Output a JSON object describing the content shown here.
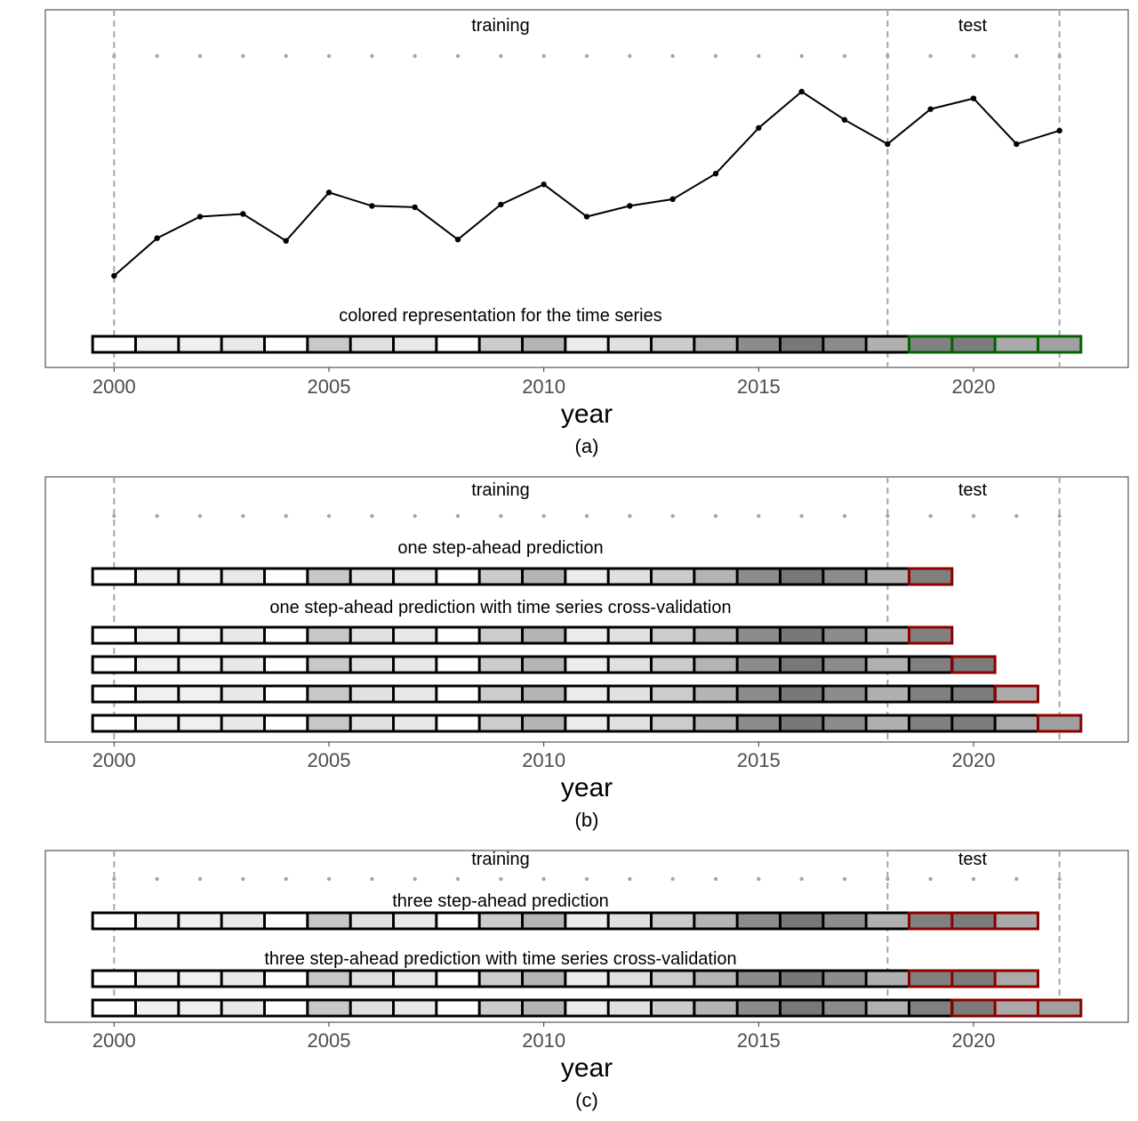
{
  "chart_data": [
    {
      "type": "line",
      "panel_label": "(a)",
      "xlabel": "year",
      "ylabel": "",
      "xlim": [
        1998.4,
        2023.6
      ],
      "x_ticks": [
        2000,
        2005,
        2010,
        2015,
        2020
      ],
      "region_labels": {
        "training": "training",
        "test": "test"
      },
      "split_lines": [
        2000,
        2018,
        2022
      ],
      "series": [
        {
          "x": [
            2000,
            2001,
            2002,
            2003,
            2004,
            2005,
            2006,
            2007,
            2008,
            2009,
            2010,
            2011,
            2012,
            2013,
            2014,
            2015,
            2016,
            2017,
            2018,
            2019,
            2020,
            2021,
            2022
          ],
          "values": [
            0.0,
            0.14,
            0.22,
            0.23,
            0.13,
            0.31,
            0.26,
            0.255,
            0.135,
            0.265,
            0.34,
            0.22,
            0.26,
            0.285,
            0.38,
            0.55,
            0.685,
            0.58,
            0.49,
            0.62,
            0.66,
            0.49,
            0.54
          ]
        }
      ],
      "rows": [
        {
          "caption": "colored representation for the time series",
          "train_years": [
            2000,
            2018
          ],
          "target_years": [
            2019,
            2022
          ],
          "target_color": "#006400"
        }
      ]
    },
    {
      "type": "table",
      "panel_label": "(b)",
      "xlabel": "year",
      "xlim": [
        1998.4,
        2023.6
      ],
      "x_ticks": [
        2000,
        2005,
        2010,
        2015,
        2020
      ],
      "region_labels": {
        "training": "training",
        "test": "test"
      },
      "split_lines": [
        2000,
        2018,
        2022
      ],
      "rows": [
        {
          "caption": "one step-ahead prediction",
          "train_years": [
            2000,
            2018
          ],
          "target_years": [
            2019,
            2019
          ],
          "target_color": "#8b0000"
        },
        {
          "caption": "one step-ahead prediction with time series cross-validation",
          "train_years": [
            2000,
            2018
          ],
          "target_years": [
            2019,
            2019
          ],
          "target_color": "#8b0000"
        },
        {
          "caption": "",
          "train_years": [
            2000,
            2019
          ],
          "target_years": [
            2020,
            2020
          ],
          "target_color": "#8b0000"
        },
        {
          "caption": "",
          "train_years": [
            2000,
            2020
          ],
          "target_years": [
            2021,
            2021
          ],
          "target_color": "#8b0000"
        },
        {
          "caption": "",
          "train_years": [
            2000,
            2021
          ],
          "target_years": [
            2022,
            2022
          ],
          "target_color": "#8b0000"
        }
      ]
    },
    {
      "type": "table",
      "panel_label": "(c)",
      "xlabel": "year",
      "xlim": [
        1998.4,
        2023.6
      ],
      "x_ticks": [
        2000,
        2005,
        2010,
        2015,
        2020
      ],
      "region_labels": {
        "training": "training",
        "test": "test"
      },
      "split_lines": [
        2000,
        2018,
        2022
      ],
      "rows": [
        {
          "caption": "three step-ahead prediction",
          "train_years": [
            2000,
            2018
          ],
          "target_years": [
            2019,
            2021
          ],
          "target_color": "#8b0000"
        },
        {
          "caption": "three step-ahead prediction with time series cross-validation",
          "train_years": [
            2000,
            2018
          ],
          "target_years": [
            2019,
            2021
          ],
          "target_color": "#8b0000"
        },
        {
          "caption": "",
          "train_years": [
            2000,
            2019
          ],
          "target_years": [
            2020,
            2022
          ],
          "target_color": "#8b0000"
        }
      ]
    }
  ],
  "cell_fills": {
    "2000": "#ffffff",
    "2001": "#f0f0f0",
    "2002": "#f0f0f0",
    "2003": "#e8e8e8",
    "2004": "#ffffff",
    "2005": "#c8c8c8",
    "2006": "#e0e0e0",
    "2007": "#e8e8e8",
    "2008": "#ffffff",
    "2009": "#cccccc",
    "2010": "#b4b4b4",
    "2011": "#ececec",
    "2012": "#e0e0e0",
    "2013": "#cccccc",
    "2014": "#b4b4b4",
    "2015": "#8c8c8c",
    "2016": "#787878",
    "2017": "#8c8c8c",
    "2018": "#b0b0b0",
    "2019": "#808080",
    "2020": "#7c7c7c",
    "2021": "#aaaaaa",
    "2022": "#a0a0a0"
  },
  "colors": {
    "train_outline": "#000000",
    "guide_line": "#a6a6a6",
    "series_line": "#000000"
  }
}
